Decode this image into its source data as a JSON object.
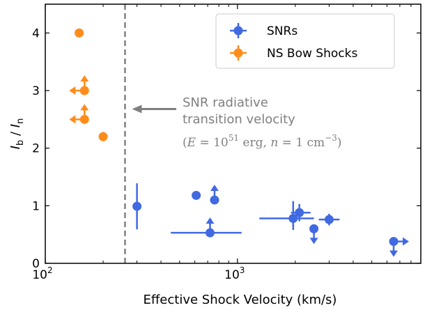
{
  "chart_data": {
    "type": "scatter",
    "title": "",
    "xlabel": "Effective Shock Velocity (km/s)",
    "ylabel_main": "I",
    "ylabel_sub1": "b",
    "ylabel_sep": " / ",
    "ylabel_sub2": "n",
    "xscale": "log",
    "xlim": [
      100,
      9000
    ],
    "ylim": [
      0,
      4.5
    ],
    "x_ticks": [
      {
        "value": 100,
        "base": "10",
        "exp": "2"
      },
      {
        "value": 1000,
        "base": "10",
        "exp": "3"
      }
    ],
    "y_ticks": [
      {
        "value": 0,
        "label": "0"
      },
      {
        "value": 1,
        "label": "1"
      },
      {
        "value": 2,
        "label": "2"
      },
      {
        "value": 3,
        "label": "3"
      },
      {
        "value": 4,
        "label": "4"
      }
    ],
    "legend_position": "top-right",
    "vertical_line": {
      "x": 260,
      "style": "dashed",
      "color": "#808080"
    },
    "annotation": {
      "line1": "SNR radiative",
      "line2": "transition velocity",
      "math_open": "(",
      "math_E": "E",
      "math_eq1": " = 10",
      "math_exp": "51",
      "math_erg": " erg, ",
      "math_n": "n",
      "math_eq2": " = 1 cm",
      "math_exp2": "−3",
      "math_close": ")"
    },
    "series": [
      {
        "name": "SNRs",
        "color": "#4169e1",
        "points": [
          {
            "x": 300,
            "y": 0.99,
            "yerr": [
              0.4,
              0.4
            ]
          },
          {
            "x": 720,
            "y": 0.53,
            "xerr": [
              270,
              330
            ],
            "up": true
          },
          {
            "x": 610,
            "y": 1.18
          },
          {
            "x": 760,
            "y": 1.1,
            "up": true
          },
          {
            "x": 1950,
            "y": 0.78,
            "xerr": [
              650,
              550
            ],
            "yerr": [
              0.2,
              0.3
            ]
          },
          {
            "x": 2100,
            "y": 0.88,
            "xerr": [
              200,
              300
            ],
            "yerr": [
              0.15,
              0.15
            ]
          },
          {
            "x": 2500,
            "y": 0.6,
            "down": true
          },
          {
            "x": 3000,
            "y": 0.76,
            "xerr": [
              350,
              400
            ],
            "yerr": [
              0.1,
              0.1
            ]
          },
          {
            "x": 6500,
            "y": 0.38,
            "right": true,
            "down": true
          }
        ]
      },
      {
        "name": "NS Bow Shocks",
        "color": "#ff8c1a",
        "points": [
          {
            "x": 150,
            "y": 4.0
          },
          {
            "x": 160,
            "y": 3.0,
            "up": true,
            "left": true
          },
          {
            "x": 160,
            "y": 2.5,
            "up": true,
            "left": true
          },
          {
            "x": 200,
            "y": 2.2,
            "yerr": [
              0.08,
              0.08
            ]
          }
        ]
      }
    ]
  }
}
